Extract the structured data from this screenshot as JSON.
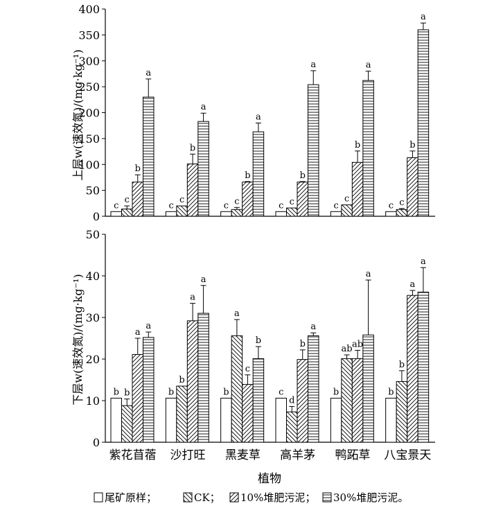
{
  "chart_data": [
    {
      "type": "bar",
      "panel": "upper",
      "ylabel": "上层w(速效氮)/(mg·kg⁻¹)",
      "ylim": [
        0,
        400
      ],
      "ticks": [
        0,
        50,
        100,
        150,
        200,
        250,
        300,
        350,
        400
      ],
      "tick_labels": [
        "0",
        "50",
        "100",
        "150",
        "200",
        "250",
        "300",
        "350",
        "400"
      ],
      "categories": [
        "紫花苜蓿",
        "沙打旺",
        "黑麦草",
        "高羊茅",
        "鸭跖草",
        "八宝景天"
      ],
      "series": [
        {
          "name": "尾矿原样",
          "values": [
            9,
            9,
            9,
            9,
            9,
            9
          ],
          "errors": [
            0,
            0,
            0,
            0,
            0,
            0
          ],
          "letters": [
            "c",
            "c",
            "c",
            "c",
            "c",
            "c"
          ]
        },
        {
          "name": "CK",
          "values": [
            14,
            20,
            13,
            16,
            22,
            13
          ],
          "errors": [
            6,
            0,
            4,
            0,
            0,
            2
          ],
          "letters": [
            "c",
            "c",
            "c",
            "c",
            "c",
            "c"
          ]
        },
        {
          "name": "10%堆肥污泥",
          "values": [
            66,
            101,
            66,
            66,
            104,
            113
          ],
          "errors": [
            14,
            19,
            1,
            1,
            22,
            13
          ],
          "letters": [
            "b",
            "b",
            "b",
            "b",
            "b",
            "b"
          ]
        },
        {
          "name": "30%堆肥污泥",
          "values": [
            230,
            183,
            163,
            254,
            262,
            360
          ],
          "errors": [
            35,
            16,
            17,
            27,
            18,
            13
          ],
          "letters": [
            "a",
            "a",
            "a",
            "a",
            "a",
            "a"
          ]
        }
      ]
    },
    {
      "type": "bar",
      "panel": "lower",
      "ylabel": "下层w(速效氮)/(mg·kg⁻¹)",
      "ylim": [
        0,
        50
      ],
      "ticks": [
        0,
        10,
        20,
        30,
        40,
        50
      ],
      "tick_labels": [
        "0",
        "10",
        "20",
        "30",
        "40",
        "50"
      ],
      "categories": [
        "紫花苜蓿",
        "沙打旺",
        "黑麦草",
        "高羊茅",
        "鸭跖草",
        "八宝景天"
      ],
      "xlabel": "植物",
      "series": [
        {
          "name": "尾矿原样",
          "values": [
            10.6,
            10.6,
            10.6,
            10.6,
            10.6,
            10.6
          ],
          "errors": [
            0,
            0,
            0,
            0,
            0,
            0
          ],
          "letters": [
            "b",
            "b",
            "b",
            "c",
            "b",
            "b"
          ]
        },
        {
          "name": "CK",
          "values": [
            8.8,
            13.5,
            25.6,
            7.3,
            20.1,
            14.6
          ],
          "errors": [
            1.6,
            0,
            3.9,
            1.3,
            0.9,
            2.6
          ],
          "letters": [
            "b",
            "b",
            "a",
            "d",
            "ab",
            "b"
          ]
        },
        {
          "name": "10%堆肥污泥",
          "values": [
            21.1,
            29.2,
            13.9,
            19.9,
            20.1,
            35.3
          ],
          "errors": [
            3.9,
            4.2,
            2.3,
            2.3,
            2.0,
            1.2
          ],
          "letters": [
            "a",
            "a",
            "c",
            "b",
            "ab",
            "a"
          ]
        },
        {
          "name": "30%堆肥污泥",
          "values": [
            25.2,
            31.0,
            20.1,
            25.6,
            25.8,
            36.1
          ],
          "errors": [
            1.3,
            6.7,
            2.9,
            0.7,
            13.2,
            5.9
          ],
          "letters": [
            "a",
            "a",
            "b",
            "a",
            "a",
            "a"
          ]
        }
      ]
    }
  ],
  "legend": {
    "items": [
      {
        "pattern": "blank",
        "label": "尾矿原样；"
      },
      {
        "pattern": "back-diagonal",
        "label": "CK；"
      },
      {
        "pattern": "forward-diagonal",
        "label": "10%堆肥污泥；"
      },
      {
        "pattern": "horizontal",
        "label": "30%堆肥污泥。"
      }
    ]
  }
}
